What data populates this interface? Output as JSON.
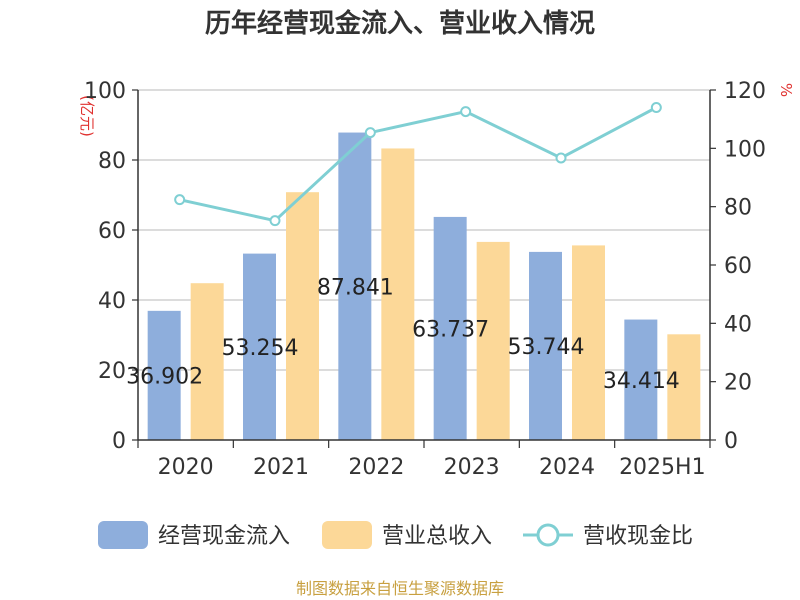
{
  "title": "历年经营现金流入、营业收入情况",
  "units": {
    "left": "(亿元)",
    "right": "%"
  },
  "legend": [
    "经营现金流入",
    "营业总收入",
    "营收现金比"
  ],
  "source": "制图数据来自恒生聚源数据库",
  "colors": {
    "cash_inflow": "#8eaedc",
    "revenue": "#fcd898",
    "ratio": "#7fcfd3"
  },
  "chart_data": {
    "type": "bar",
    "categories": [
      "2020",
      "2021",
      "2022",
      "2023",
      "2024",
      "2025H1"
    ],
    "series": [
      {
        "name": "经营现金流入",
        "axis": "left",
        "values": [
          36.902,
          53.254,
          87.841,
          63.737,
          53.744,
          34.414
        ]
      },
      {
        "name": "营业总收入",
        "axis": "left",
        "values": [
          44.8,
          70.8,
          83.3,
          56.6,
          55.6,
          30.2
        ]
      },
      {
        "name": "营收现金比",
        "axis": "right",
        "type": "line",
        "values": [
          82.4,
          75.2,
          105.4,
          112.6,
          96.7,
          114.0
        ]
      }
    ],
    "data_labels": [
      "36.902",
      "53.254",
      "87.841",
      "63.737",
      "53.744",
      "34.414"
    ],
    "ylim_left": [
      0,
      100
    ],
    "yticks_left": [
      "0",
      "20",
      "40",
      "60",
      "80",
      "100"
    ],
    "ylim_right": [
      0,
      120
    ],
    "yticks_right": [
      "0",
      "20",
      "40",
      "60",
      "80",
      "100",
      "120"
    ],
    "grid": true,
    "legend_position": "bottom"
  }
}
